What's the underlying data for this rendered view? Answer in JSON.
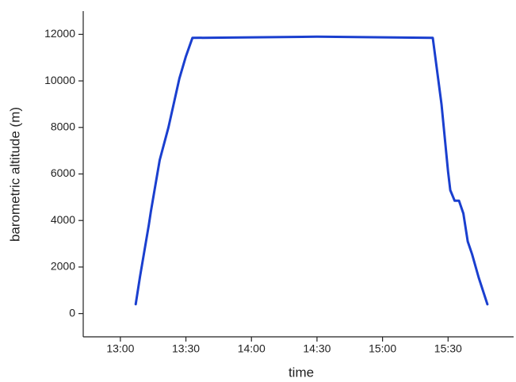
{
  "chart_data": {
    "type": "line",
    "x_label": "time",
    "y_label": "barometric altitude (m)",
    "x": [
      "13:07",
      "13:09",
      "13:13",
      "13:14",
      "13:18",
      "13:22",
      "13:27",
      "13:30",
      "13:33",
      "14:30",
      "15:23",
      "15:27",
      "15:30",
      "15:31",
      "15:33",
      "15:35",
      "15:37",
      "15:39",
      "15:41",
      "15:44",
      "15:48"
    ],
    "series": [
      {
        "name": "barometric altitude",
        "color": "#1a3fcf",
        "values": [
          400,
          1600,
          3800,
          4400,
          6600,
          8000,
          10100,
          11050,
          11850,
          11900,
          11850,
          9000,
          6100,
          5300,
          4850,
          4850,
          4300,
          3100,
          2550,
          1550,
          400
        ]
      }
    ],
    "xlim": [
      "12:43",
      "16:00"
    ],
    "xticks": [
      "13:00",
      "13:30",
      "14:00",
      "14:30",
      "15:00",
      "15:30"
    ],
    "ylim": [
      -1000,
      13000
    ],
    "yticks": [
      0,
      2000,
      4000,
      6000,
      8000,
      10000,
      12000
    ]
  }
}
